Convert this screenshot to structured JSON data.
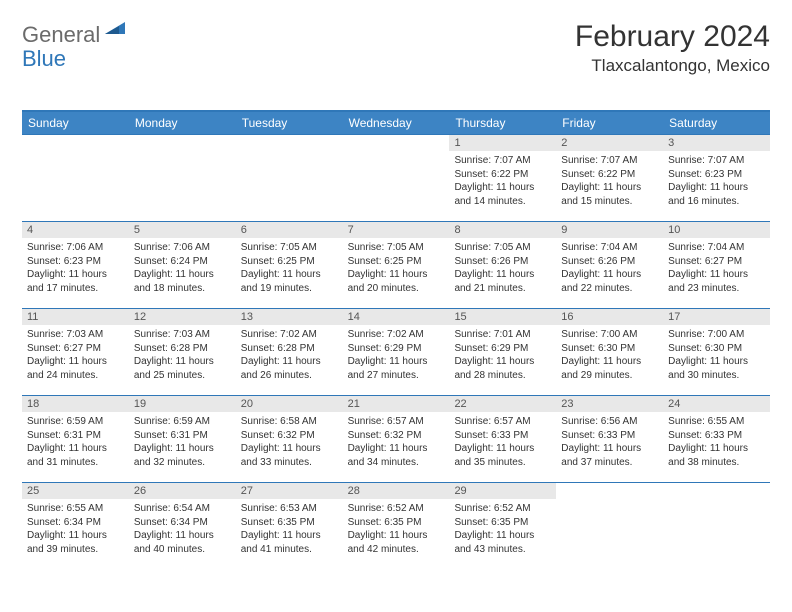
{
  "logo": {
    "general": "General",
    "blue": "Blue"
  },
  "title": "February 2024",
  "location": "Tlaxcalantongo, Mexico",
  "colors": {
    "header_bar": "#3d84c4",
    "border": "#2f77b8",
    "daynum_bg": "#e8e8e8",
    "text": "#333333",
    "logo_gray": "#6b6b6b",
    "logo_blue": "#2f77b8"
  },
  "dow": [
    "Sunday",
    "Monday",
    "Tuesday",
    "Wednesday",
    "Thursday",
    "Friday",
    "Saturday"
  ],
  "weeks": [
    [
      null,
      null,
      null,
      null,
      {
        "n": "1",
        "sr": "7:07 AM",
        "ss": "6:22 PM",
        "dl": "11 hours and 14 minutes."
      },
      {
        "n": "2",
        "sr": "7:07 AM",
        "ss": "6:22 PM",
        "dl": "11 hours and 15 minutes."
      },
      {
        "n": "3",
        "sr": "7:07 AM",
        "ss": "6:23 PM",
        "dl": "11 hours and 16 minutes."
      }
    ],
    [
      {
        "n": "4",
        "sr": "7:06 AM",
        "ss": "6:23 PM",
        "dl": "11 hours and 17 minutes."
      },
      {
        "n": "5",
        "sr": "7:06 AM",
        "ss": "6:24 PM",
        "dl": "11 hours and 18 minutes."
      },
      {
        "n": "6",
        "sr": "7:05 AM",
        "ss": "6:25 PM",
        "dl": "11 hours and 19 minutes."
      },
      {
        "n": "7",
        "sr": "7:05 AM",
        "ss": "6:25 PM",
        "dl": "11 hours and 20 minutes."
      },
      {
        "n": "8",
        "sr": "7:05 AM",
        "ss": "6:26 PM",
        "dl": "11 hours and 21 minutes."
      },
      {
        "n": "9",
        "sr": "7:04 AM",
        "ss": "6:26 PM",
        "dl": "11 hours and 22 minutes."
      },
      {
        "n": "10",
        "sr": "7:04 AM",
        "ss": "6:27 PM",
        "dl": "11 hours and 23 minutes."
      }
    ],
    [
      {
        "n": "11",
        "sr": "7:03 AM",
        "ss": "6:27 PM",
        "dl": "11 hours and 24 minutes."
      },
      {
        "n": "12",
        "sr": "7:03 AM",
        "ss": "6:28 PM",
        "dl": "11 hours and 25 minutes."
      },
      {
        "n": "13",
        "sr": "7:02 AM",
        "ss": "6:28 PM",
        "dl": "11 hours and 26 minutes."
      },
      {
        "n": "14",
        "sr": "7:02 AM",
        "ss": "6:29 PM",
        "dl": "11 hours and 27 minutes."
      },
      {
        "n": "15",
        "sr": "7:01 AM",
        "ss": "6:29 PM",
        "dl": "11 hours and 28 minutes."
      },
      {
        "n": "16",
        "sr": "7:00 AM",
        "ss": "6:30 PM",
        "dl": "11 hours and 29 minutes."
      },
      {
        "n": "17",
        "sr": "7:00 AM",
        "ss": "6:30 PM",
        "dl": "11 hours and 30 minutes."
      }
    ],
    [
      {
        "n": "18",
        "sr": "6:59 AM",
        "ss": "6:31 PM",
        "dl": "11 hours and 31 minutes."
      },
      {
        "n": "19",
        "sr": "6:59 AM",
        "ss": "6:31 PM",
        "dl": "11 hours and 32 minutes."
      },
      {
        "n": "20",
        "sr": "6:58 AM",
        "ss": "6:32 PM",
        "dl": "11 hours and 33 minutes."
      },
      {
        "n": "21",
        "sr": "6:57 AM",
        "ss": "6:32 PM",
        "dl": "11 hours and 34 minutes."
      },
      {
        "n": "22",
        "sr": "6:57 AM",
        "ss": "6:33 PM",
        "dl": "11 hours and 35 minutes."
      },
      {
        "n": "23",
        "sr": "6:56 AM",
        "ss": "6:33 PM",
        "dl": "11 hours and 37 minutes."
      },
      {
        "n": "24",
        "sr": "6:55 AM",
        "ss": "6:33 PM",
        "dl": "11 hours and 38 minutes."
      }
    ],
    [
      {
        "n": "25",
        "sr": "6:55 AM",
        "ss": "6:34 PM",
        "dl": "11 hours and 39 minutes."
      },
      {
        "n": "26",
        "sr": "6:54 AM",
        "ss": "6:34 PM",
        "dl": "11 hours and 40 minutes."
      },
      {
        "n": "27",
        "sr": "6:53 AM",
        "ss": "6:35 PM",
        "dl": "11 hours and 41 minutes."
      },
      {
        "n": "28",
        "sr": "6:52 AM",
        "ss": "6:35 PM",
        "dl": "11 hours and 42 minutes."
      },
      {
        "n": "29",
        "sr": "6:52 AM",
        "ss": "6:35 PM",
        "dl": "11 hours and 43 minutes."
      },
      null,
      null
    ]
  ],
  "labels": {
    "sunrise": "Sunrise: ",
    "sunset": "Sunset: ",
    "daylight": "Daylight: "
  }
}
